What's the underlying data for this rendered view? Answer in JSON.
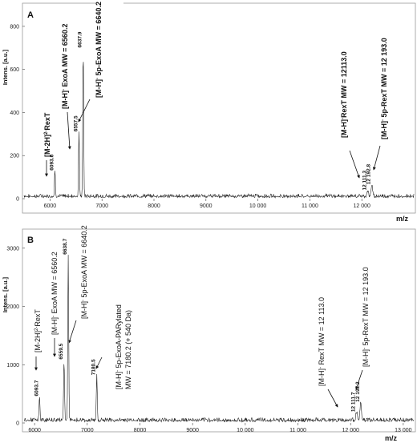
{
  "chart_data": [
    {
      "panel": "A",
      "type": "line",
      "ylabel": "Intens. [a.u.]",
      "xlabel": "m/z",
      "xlim": [
        5500,
        13000
      ],
      "ylim": [
        0,
        900
      ],
      "x_ticks": [
        6000,
        7000,
        8000,
        9000,
        10000,
        11000,
        12000
      ],
      "x_tick_labels": [
        "6000",
        "7000",
        "8000",
        "9000",
        "10 000",
        "11 000",
        "12 000"
      ],
      "y_ticks": [
        0,
        200,
        400,
        600,
        800
      ],
      "y_tick_labels": [
        "0",
        "200",
        "400",
        "600",
        "800"
      ],
      "baseline_noise": 22,
      "peaks": [
        {
          "x": 6093.6,
          "y": 120,
          "w": 12,
          "label": "6093.6"
        },
        {
          "x": 6557.5,
          "y": 300,
          "w": 12,
          "label": "6557.5"
        },
        {
          "x": 6637.9,
          "y": 690,
          "w": 12,
          "label": "6637.9"
        },
        {
          "x": 12111.3,
          "y": 28,
          "w": 18,
          "label": "12 111.3"
        },
        {
          "x": 12192.8,
          "y": 55,
          "w": 18,
          "label": "12 192.8"
        }
      ],
      "annotations": [
        {
          "text": "[M-2H]",
          "sup": "2-",
          "suffix": "RexT",
          "bold": true
        },
        {
          "text": "[M-H]",
          "sup": "-",
          "suffix": " ExoA MW = 6560.2",
          "bold": true
        },
        {
          "text": "[M-H]",
          "sup": "-",
          "suffix": " 5p-ExoA  MW = 6640.2",
          "bold": true
        },
        {
          "text": "[M-H]",
          "sup": "-",
          "suffix": "RexT  MW = 12113.0",
          "bold": true
        },
        {
          "text": "[M-H]",
          "sup": "-",
          "suffix": " 5p-RexT  MW = 12 193.0",
          "bold": true
        }
      ]
    },
    {
      "panel": "B",
      "type": "line",
      "ylabel": "Intens. [a.u.]",
      "xlabel": "m/z",
      "xlim": [
        5800,
        13200
      ],
      "ylim": [
        0,
        3300
      ],
      "x_ticks": [
        6000,
        7000,
        8000,
        9000,
        10000,
        11000,
        12000,
        13000
      ],
      "x_tick_labels": [
        "6000",
        "7000",
        "8000",
        "9000",
        "10 000",
        "11 000",
        "12 000",
        "13 000"
      ],
      "y_ticks": [
        0,
        1000,
        2000,
        3000
      ],
      "y_tick_labels": [
        "0",
        "1000",
        "2000",
        "3000"
      ],
      "baseline_noise": 90,
      "peaks": [
        {
          "x": 6093.7,
          "y": 420,
          "w": 12,
          "label": "6093.7"
        },
        {
          "x": 6559.5,
          "y": 1050,
          "w": 12,
          "label": "6559.5"
        },
        {
          "x": 6638.7,
          "y": 2850,
          "w": 12,
          "label": "6638.7"
        },
        {
          "x": 7180.5,
          "y": 780,
          "w": 12,
          "label": "7180.5"
        },
        {
          "x": 12111.7,
          "y": 150,
          "w": 18,
          "label": "12 111.7"
        },
        {
          "x": 12192.2,
          "y": 320,
          "w": 18,
          "label": "12 192.2"
        }
      ],
      "annotations": [
        {
          "text": "[M-2H]",
          "sup": "2-",
          "suffix": "RexT",
          "bold": false
        },
        {
          "text": "[M-H]",
          "sup": "-",
          "suffix": " ExoA MW = 6560.2",
          "bold": false
        },
        {
          "text": "[M-H]",
          "sup": "-",
          "suffix": " 5p-ExoA  MW = 6640.2",
          "bold": false
        },
        {
          "text": "[M-H]",
          "sup": "-",
          "suffix": " 5p-ExoA-PARylated",
          "line2": "MW = 7180.2 (+ 540 Da)",
          "bold": false
        },
        {
          "text": "[M-H]",
          "sup": "-",
          "suffix": " RexT  MW = 12 113.0",
          "bold": false
        },
        {
          "text": "[M-H]",
          "sup": "-",
          "suffix": " 5p-RexT  MW = 12 193.0",
          "bold": false
        }
      ]
    }
  ]
}
